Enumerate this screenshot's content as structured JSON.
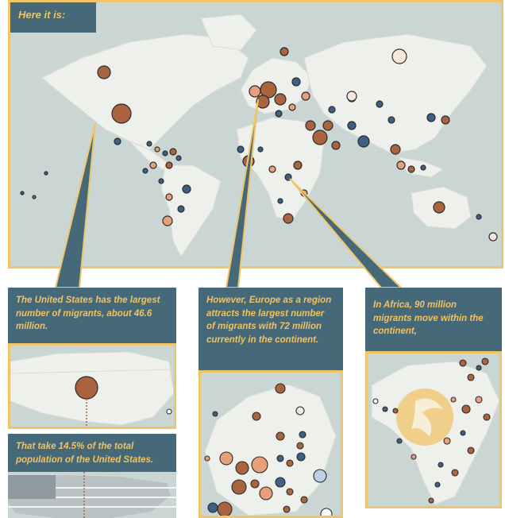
{
  "header": {
    "title": "Here it is:"
  },
  "callouts": {
    "usa": "The United States has the largest number of migrants, about 46.6 million.",
    "usa_share": "That take 14.5% of the total population of the United States.",
    "europe": "However, Europe as a region attracts the largest number of migrants with 72 million currently in the continent.",
    "africa": "In Africa, 90 million migrants move within the continent,"
  },
  "colors": {
    "ocean": "#c9d6d3",
    "land": "#eef0ec",
    "border": "#f0c56a",
    "label_bg": "#456978",
    "label_text": "#f2c260",
    "destination": "#a9643f",
    "origin": "#3f5f84",
    "mixed": "#e8a07a",
    "light": "#f6e8dc"
  }
}
